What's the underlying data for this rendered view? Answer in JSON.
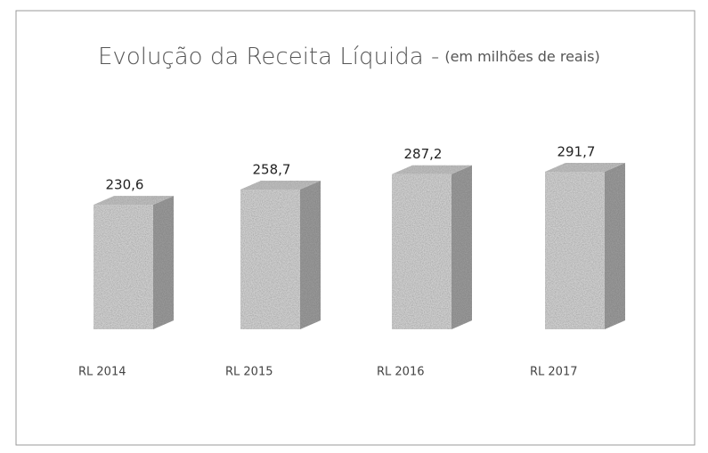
{
  "chart_data": {
    "type": "bar3d",
    "title": "Evolução da Receita Líquida -",
    "subtitle": "(em milhões de reais)",
    "categories": [
      "RL 2014",
      "RL 2015",
      "RL 2016",
      "RL 2017"
    ],
    "values": [
      230.6,
      258.7,
      287.2,
      291.7
    ],
    "value_labels": [
      "230,6",
      "258,7",
      "287,2",
      "291,7"
    ],
    "color": "#cfcfcf"
  }
}
